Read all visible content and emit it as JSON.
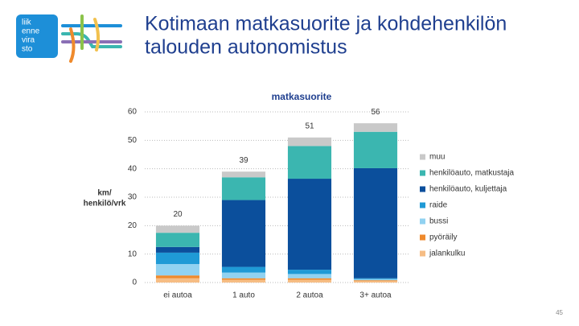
{
  "slide_title": [
    "Kotimaan matkasuorite ja kohdehenkilön",
    "talouden autonomistus"
  ],
  "logo": [
    "liik",
    "enne",
    "vira",
    "sto"
  ],
  "page_number": "45",
  "chart_data": {
    "type": "stacked_bar",
    "title": "matkasuorite",
    "ylabel": [
      "km/",
      "henkilö/vrk"
    ],
    "categories": [
      "ei autoa",
      "1 auto",
      "2 autoa",
      "3+ autoa"
    ],
    "totals": [
      20,
      39,
      51,
      56
    ],
    "ylim": [
      0,
      60
    ],
    "yticks": [
      0,
      10,
      20,
      30,
      40,
      50,
      60
    ],
    "grid": true,
    "legend": "right",
    "series": [
      {
        "name": "jalankulku",
        "color": "#f6bd84",
        "values": [
          1.5,
          1,
          1,
          0.5
        ]
      },
      {
        "name": "pyöräily",
        "color": "#ef8a2c",
        "values": [
          1,
          0.5,
          0.5,
          0.3
        ]
      },
      {
        "name": "bussi",
        "color": "#91d2f1",
        "values": [
          4,
          2,
          1.5,
          0.4
        ]
      },
      {
        "name": "raide",
        "color": "#1f9ad6",
        "values": [
          4,
          2,
          1.5,
          0.3
        ]
      },
      {
        "name": "henkilöauto, kuljettaja",
        "color": "#0b4f9c",
        "values": [
          2,
          23.5,
          32,
          38.7
        ]
      },
      {
        "name": "henkilöauto, matkustaja",
        "color": "#3bb6b0",
        "values": [
          5,
          8,
          11.5,
          12.8
        ]
      },
      {
        "name": "muu",
        "color": "#c9c9c9",
        "values": [
          2.5,
          2,
          3,
          3
        ]
      }
    ]
  }
}
